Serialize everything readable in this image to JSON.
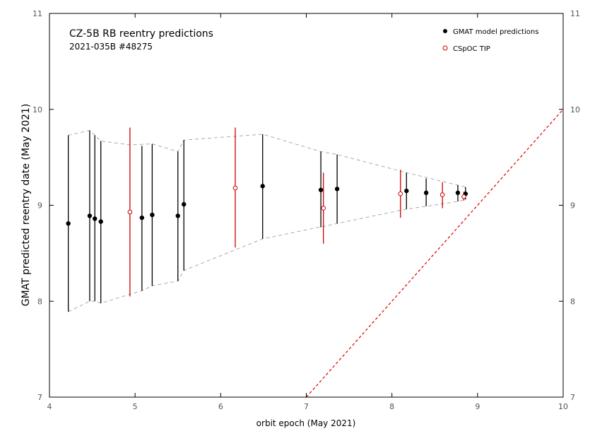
{
  "chart_data": {
    "type": "scatter",
    "title": "CZ-5B RB reentry predictions",
    "subtitle": "2021-035B  #48275",
    "xlabel": "orbit epoch  (May 2021)",
    "ylabel": "GMAT predicted reentry date  (May 2021)",
    "xlim": [
      4,
      10
    ],
    "ylim": [
      7,
      11
    ],
    "xticks": [
      4,
      5,
      6,
      7,
      8,
      9,
      10
    ],
    "yticks": [
      7,
      8,
      9,
      10,
      11
    ],
    "legend_position": "top-right",
    "colors": {
      "gmat": "#000000",
      "tip": "#cc0000",
      "envelope": "#aaaaaa",
      "diagonal": "#dd0000",
      "axis": "#000000"
    },
    "series": [
      {
        "name": "GMAT model predictions",
        "marker": "filled-circle",
        "points": [
          {
            "x": 4.22,
            "y": 8.81,
            "lo": 7.89,
            "hi": 9.73
          },
          {
            "x": 4.47,
            "y": 8.89,
            "lo": 8.0,
            "hi": 9.78
          },
          {
            "x": 4.53,
            "y": 8.86,
            "lo": 8.0,
            "hi": 9.73
          },
          {
            "x": 4.6,
            "y": 8.83,
            "lo": 7.98,
            "hi": 9.67
          },
          {
            "x": 5.08,
            "y": 8.87,
            "lo": 8.11,
            "hi": 9.62
          },
          {
            "x": 5.2,
            "y": 8.9,
            "lo": 8.16,
            "hi": 9.64
          },
          {
            "x": 5.5,
            "y": 8.89,
            "lo": 8.21,
            "hi": 9.56
          },
          {
            "x": 5.57,
            "y": 9.01,
            "lo": 8.32,
            "hi": 9.68
          },
          {
            "x": 6.49,
            "y": 9.2,
            "lo": 8.65,
            "hi": 9.74
          },
          {
            "x": 7.17,
            "y": 9.16,
            "lo": 8.77,
            "hi": 9.56
          },
          {
            "x": 7.36,
            "y": 9.17,
            "lo": 8.81,
            "hi": 9.53
          },
          {
            "x": 8.17,
            "y": 9.15,
            "lo": 8.96,
            "hi": 9.34
          },
          {
            "x": 8.4,
            "y": 9.13,
            "lo": 8.99,
            "hi": 9.28
          },
          {
            "x": 8.77,
            "y": 9.13,
            "lo": 9.04,
            "hi": 9.21
          },
          {
            "x": 8.86,
            "y": 9.12,
            "lo": 9.06,
            "hi": 9.19
          }
        ]
      },
      {
        "name": "CSpOC TIP",
        "marker": "open-circle",
        "points": [
          {
            "x": 4.94,
            "y": 8.93,
            "lo": 8.05,
            "hi": 9.81
          },
          {
            "x": 6.17,
            "y": 9.18,
            "lo": 8.56,
            "hi": 9.81
          },
          {
            "x": 7.2,
            "y": 8.97,
            "lo": 8.6,
            "hi": 9.34
          },
          {
            "x": 8.1,
            "y": 9.12,
            "lo": 8.87,
            "hi": 9.37
          },
          {
            "x": 8.59,
            "y": 9.11,
            "lo": 8.97,
            "hi": 9.24
          },
          {
            "x": 8.84,
            "y": 9.09,
            "lo": 9.05,
            "hi": 9.14
          }
        ]
      }
    ],
    "envelope": {
      "upper": [
        [
          4.22,
          9.73
        ],
        [
          4.47,
          9.78
        ],
        [
          4.6,
          9.67
        ],
        [
          4.94,
          9.63
        ],
        [
          5.2,
          9.64
        ],
        [
          5.5,
          9.56
        ],
        [
          5.57,
          9.68
        ],
        [
          6.49,
          9.74
        ],
        [
          7.17,
          9.56
        ],
        [
          7.36,
          9.53
        ],
        [
          8.17,
          9.34
        ],
        [
          8.77,
          9.21
        ],
        [
          8.86,
          9.19
        ]
      ],
      "lower": [
        [
          4.22,
          7.89
        ],
        [
          4.47,
          8.0
        ],
        [
          4.53,
          8.0
        ],
        [
          4.6,
          7.98
        ],
        [
          5.08,
          8.11
        ],
        [
          5.2,
          8.16
        ],
        [
          5.5,
          8.21
        ],
        [
          5.57,
          8.32
        ],
        [
          6.49,
          8.65
        ],
        [
          7.36,
          8.81
        ],
        [
          8.17,
          8.96
        ],
        [
          8.4,
          8.99
        ],
        [
          8.77,
          9.04
        ],
        [
          8.86,
          9.06
        ]
      ]
    },
    "reference_line": {
      "from": [
        7.0,
        7.0
      ],
      "to": [
        10.0,
        10.0
      ]
    }
  }
}
